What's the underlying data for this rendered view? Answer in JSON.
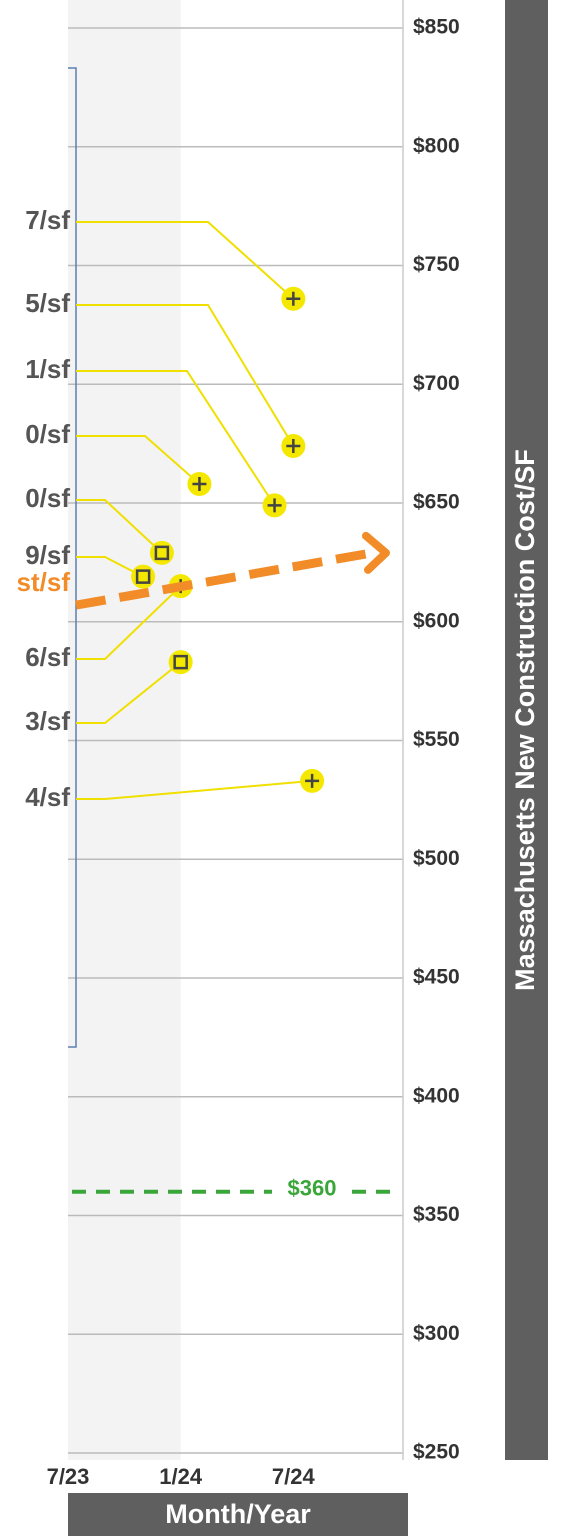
{
  "chart_data": {
    "type": "scatter",
    "ylabel": "Massachusetts New Construction Cost/SF",
    "xlabel": "Month/Year",
    "ylim": [
      250,
      850
    ],
    "yticks": [
      {
        "value": 250,
        "label": "$250"
      },
      {
        "value": 300,
        "label": "$300"
      },
      {
        "value": 350,
        "label": "$350"
      },
      {
        "value": 400,
        "label": "$400"
      },
      {
        "value": 450,
        "label": "$450"
      },
      {
        "value": 500,
        "label": "$500"
      },
      {
        "value": 550,
        "label": "$550"
      },
      {
        "value": 600,
        "label": "$600"
      },
      {
        "value": 650,
        "label": "$650"
      },
      {
        "value": 700,
        "label": "$700"
      },
      {
        "value": 750,
        "label": "$750"
      },
      {
        "value": 800,
        "label": "$800"
      },
      {
        "value": 850,
        "label": "$850"
      }
    ],
    "xlim": [
      "7/23",
      "1/25"
    ],
    "xticks": [
      "7/23",
      "1/24",
      "7/24"
    ],
    "grid": true,
    "shade": [
      "7/23",
      "1/24"
    ],
    "point_color": "#f5e800",
    "points": [
      {
        "label": "7/sf",
        "x": "7/24",
        "y": 736,
        "marker": "plus"
      },
      {
        "label": "5/sf",
        "x": "7/24",
        "y": 674,
        "marker": "plus"
      },
      {
        "label": "1/sf",
        "x": "6/24",
        "y": 649,
        "marker": "plus"
      },
      {
        "label": "0/sf",
        "x": "2/24",
        "y": 658,
        "marker": "plus"
      },
      {
        "label": "0/sf",
        "x": "12/23",
        "y": 629,
        "marker": "square"
      },
      {
        "label": "9/sf",
        "x": "11/23",
        "y": 619,
        "marker": "square"
      },
      {
        "label": "6/sf",
        "x": "1/24",
        "y": 615,
        "marker": "plus"
      },
      {
        "label": "3/sf",
        "x": "1/24",
        "y": 583,
        "marker": "square"
      },
      {
        "label": "4/sf",
        "x": "8/24",
        "y": 533,
        "marker": "plus"
      }
    ],
    "trend": {
      "label": "st/sf",
      "y": [
        607,
        629
      ],
      "color": "#f28c28"
    },
    "reference": {
      "label": "$360",
      "value": 360,
      "color": "#3aa63a"
    }
  }
}
